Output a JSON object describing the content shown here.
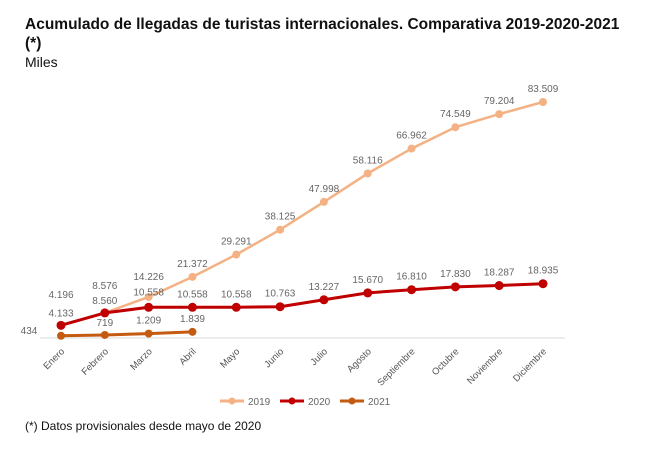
{
  "header": {
    "title": "Acumulado de llegadas de turistas internacionales. Comparativa 2019-2020-2021 (*)",
    "subtitle": "Miles"
  },
  "footnote": "(*) Datos provisionales desde mayo de 2020",
  "chart_data": {
    "type": "line",
    "title": "Acumulado de llegadas de turistas internacionales. Comparativa 2019-2020-2021 (*)",
    "ylabel": "Miles",
    "xlabel": "",
    "categories": [
      "Enero",
      "Febrero",
      "Marzo",
      "Abril",
      "Mayo",
      "Junio",
      "Julio",
      "Agosto",
      "Septiembre",
      "Octubre",
      "Noviembre",
      "Diciembre"
    ],
    "ylim": [
      0,
      85000
    ],
    "grid": false,
    "legend": "bottom",
    "series": [
      {
        "name": "2019",
        "color": "#F4B183",
        "values": [
          4196,
          8576,
          14226,
          21372,
          29291,
          38125,
          47998,
          58116,
          66962,
          74549,
          79204,
          83509
        ],
        "labels": [
          "4.196",
          "8.576",
          "14.226",
          "21.372",
          "29.291",
          "38.125",
          "47.998",
          "58.116",
          "66.962",
          "74.549",
          "79.204",
          "83.509"
        ]
      },
      {
        "name": "2020",
        "color": "#C00000",
        "values": [
          4133,
          8560,
          10558,
          10558,
          10558,
          10763,
          13227,
          15670,
          16810,
          17830,
          18287,
          18935
        ],
        "labels": [
          "4.133",
          "8.560",
          "10.558",
          "10.558",
          "10.558",
          "10.763",
          "13.227",
          "15.670",
          "16.810",
          "17.830",
          "18.287",
          "18.935"
        ]
      },
      {
        "name": "2021",
        "color": "#C55A11",
        "values": [
          434,
          719,
          1209,
          1839
        ],
        "labels": [
          "434",
          "719",
          "1.209",
          "1.839"
        ]
      }
    ]
  }
}
